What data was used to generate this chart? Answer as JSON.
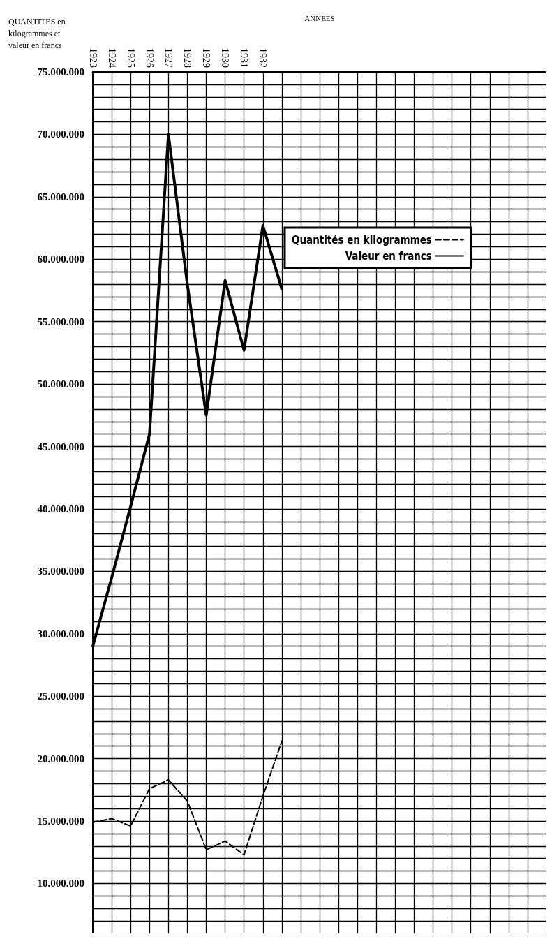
{
  "chart_data": {
    "type": "line",
    "ylabel": "QUANTITES en kilogrammes et valeur en francs",
    "xlabel": "ANNEES",
    "categories": [
      "1923",
      "1924",
      "1925",
      "1926",
      "1927",
      "1928",
      "1929",
      "1930",
      "1931",
      "1932",
      null,
      null,
      null,
      null,
      null,
      null,
      null,
      null,
      null,
      null,
      null,
      null,
      null,
      null,
      null
    ],
    "series": [
      {
        "name": "Quantités en kilogrammes",
        "color": "#000000",
        "line_style": "dashed",
        "values": [
          14900000,
          15200000,
          14600000,
          17600000,
          18300000,
          16600000,
          12700000,
          13400000,
          12300000,
          17000000,
          21400000,
          null,
          null,
          null,
          null,
          null,
          null,
          null,
          null,
          null,
          null,
          null,
          null,
          null,
          null
        ]
      },
      {
        "name": "Valeur en francs",
        "color": "#000000",
        "line_style": "solid",
        "values": [
          29000000,
          34500000,
          40200000,
          46000000,
          70000000,
          58000000,
          47500000,
          58300000,
          52700000,
          62700000,
          57600000,
          null,
          null,
          null,
          null,
          null,
          null,
          null,
          null,
          null,
          null,
          null,
          null,
          null,
          null
        ]
      }
    ],
    "ylim": [
      6000000,
      75000000
    ],
    "yticks": [
      {
        "value": 10000000,
        "label": "10.000.000"
      },
      {
        "value": 15000000,
        "label": "15.000.000"
      },
      {
        "value": 20000000,
        "label": "20.000.000"
      },
      {
        "value": 25000000,
        "label": "25.000.000"
      },
      {
        "value": 30000000,
        "label": "30.000.000"
      },
      {
        "value": 35000000,
        "label": "35.000.000"
      },
      {
        "value": 40000000,
        "label": "40.000.000"
      },
      {
        "value": 45000000,
        "label": "45.000.000"
      },
      {
        "value": 50000000,
        "label": "50.000.000"
      },
      {
        "value": 55000000,
        "label": "55.000.000"
      },
      {
        "value": 60000000,
        "label": "60.000.000"
      },
      {
        "value": 65000000,
        "label": "65.000.000"
      },
      {
        "value": 70000000,
        "label": "70.000.000"
      },
      {
        "value": 75000000,
        "label": "75.000.000"
      }
    ],
    "grid": true,
    "legend": "top",
    "marker": "none"
  }
}
